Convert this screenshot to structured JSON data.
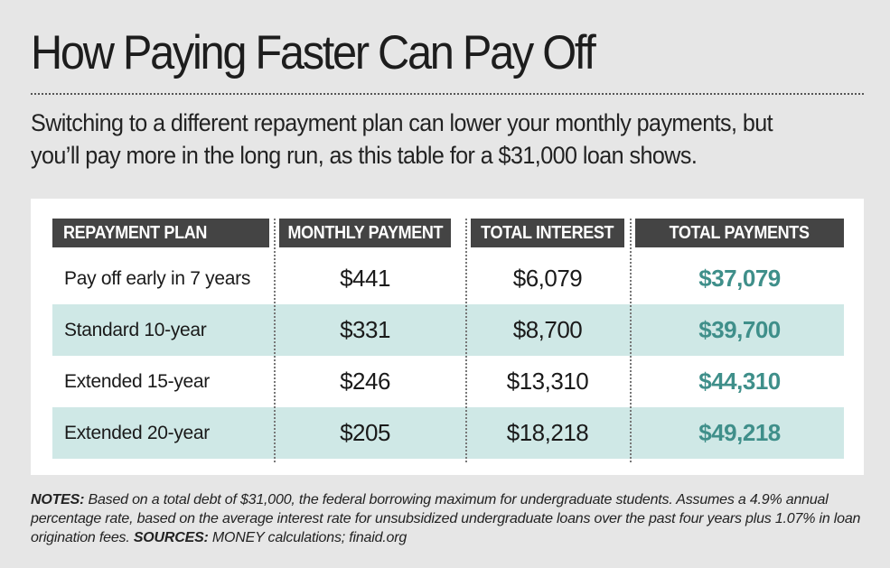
{
  "title": "How Paying Faster Can Pay Off",
  "subtitle": "Switching to a different repayment plan can lower your monthly payments, but you’ll pay more in the long run, as this table for a $31,000 loan shows.",
  "colors": {
    "header_bg": "#444444",
    "row_shade": "#cfe8e6",
    "total_accent": "#3f8f8a",
    "page_bg": "#e6e6e6"
  },
  "chart_data": {
    "type": "table",
    "columns": [
      "REPAYMENT PLAN",
      "MONTHLY PAYMENT",
      "TOTAL INTEREST",
      "TOTAL PAYMENTS"
    ],
    "rows": [
      {
        "plan": "Pay off early in 7 years",
        "monthly": "$441",
        "interest": "$6,079",
        "total": "$37,079"
      },
      {
        "plan": "Standard 10-year",
        "monthly": "$331",
        "interest": "$8,700",
        "total": "$39,700"
      },
      {
        "plan": "Extended 15-year",
        "monthly": "$246",
        "interest": "$13,310",
        "total": "$44,310"
      },
      {
        "plan": "Extended 20-year",
        "monthly": "$205",
        "interest": "$18,218",
        "total": "$49,218"
      }
    ]
  },
  "notes": {
    "notes_label": "NOTES:",
    "notes_text": " Based on a total debt of $31,000, the federal borrowing maximum for undergraduate students. Assumes a 4.9% annual percentage rate, based on the average interest rate for unsubsidized undergraduate loans over the past four years plus 1.07% in loan origination fees. ",
    "sources_label": "SOURCES:",
    "sources_text": " MONEY calculations; finaid.org"
  }
}
